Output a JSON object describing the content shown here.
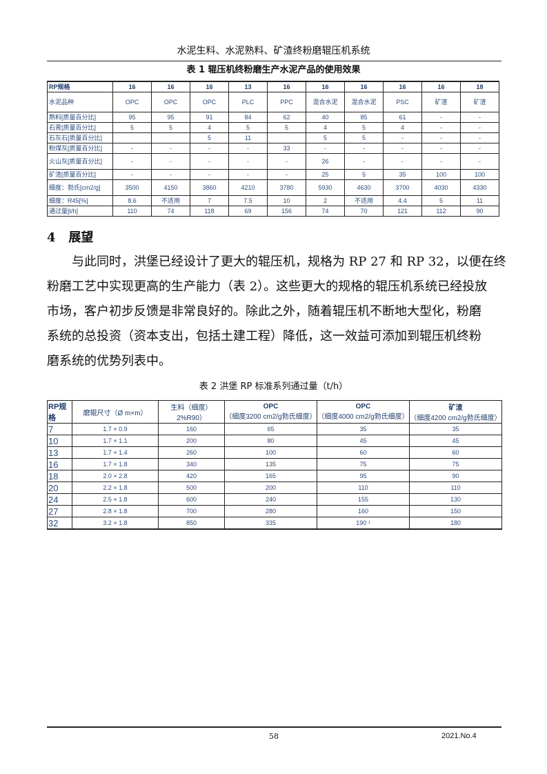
{
  "running_head": "水泥生料、水泥熟料、矿渣终粉磨辊压机系统",
  "table1": {
    "caption": "表 1  辊压机终粉磨生产水泥产品的使用效果",
    "header": [
      "RP规格",
      "16",
      "16",
      "16",
      "13",
      "16",
      "16",
      "16",
      "16",
      "16",
      "18"
    ],
    "rows": [
      [
        "水泥品种",
        "OPC",
        "OPC",
        "OPC",
        "PLC",
        "PPC",
        "混合水泥",
        "混合水泥",
        "PSC",
        "矿渣",
        "矿渣"
      ],
      [
        "熟料[质量百分比]",
        "95",
        "95",
        "91",
        "84",
        "62",
        "40",
        "85",
        "61",
        "-",
        "-"
      ],
      [
        "石膏[质量百分比]",
        "5",
        "5",
        "4",
        "5",
        "5",
        "4",
        "5",
        "4",
        "-",
        "-"
      ],
      [
        "石灰石[质量百分比]",
        "",
        "",
        "5",
        "11",
        "",
        "5",
        "5",
        "-",
        "-",
        "-"
      ],
      [
        "粉煤灰[质量百分比]",
        "-",
        "-",
        "-",
        "-",
        "33",
        "-",
        "-",
        "-",
        "-",
        "-"
      ],
      [
        "火山灰[质量百分比]",
        "-",
        "-",
        "-",
        "-",
        "-",
        "26",
        "-",
        "-",
        "-",
        "-"
      ],
      [
        "矿渣[质量百分比]",
        "-",
        "-",
        "-",
        "-",
        "-",
        "25",
        "5",
        "35",
        "100",
        "100"
      ],
      [
        "细度：勃氏[cm2/g]",
        "3500",
        "4150",
        "3860",
        "4210",
        "3780",
        "5930",
        "4630",
        "3700",
        "4030",
        "4330"
      ],
      [
        "细度：R45[%]",
        "8.6",
        "不适用",
        "7",
        "7.5",
        "10",
        "2",
        "不适用",
        "4.4",
        "5",
        "11"
      ],
      [
        "通过量[t/h]",
        "110",
        "74",
        "118",
        "69",
        "156",
        "74",
        "70",
        "121",
        "112",
        "90"
      ]
    ]
  },
  "section": {
    "number": "4",
    "title": "展望"
  },
  "paragraph": [
    "　　与此同时，洪堡已经设计了更大的辊压机，规格为 RP 27 和 RP 32，以便在终",
    "粉磨工艺中实现更高的生产能力（表 2）。这些更大的规格的辊压机系统已经投放",
    "市场，客户初步反馈是非常良好的。除此之外，随着辊压机不断地大型化，粉磨",
    "系统的总投资（资本支出，包括土建工程）降低，这一效益可添加到辊压机终粉",
    "磨系统的优势列表中。"
  ],
  "table2": {
    "caption": "表 2  洪堡 RP 标准系列通过量（t/h）",
    "header": [
      [
        "RP规格"
      ],
      [
        "磨辊尺寸（Ø m×m）"
      ],
      [
        "生料（细度）2%R90）"
      ],
      [
        "OPC",
        "（细度3200 cm2/g勃氏细度）"
      ],
      [
        "OPC",
        "（细度4000 cm2/g勃氏细度）"
      ],
      [
        "矿渣",
        "（细度4200 cm2/g勃氏细度）"
      ]
    ],
    "rows": [
      [
        "7",
        "1.7 × 0.9",
        "160",
        "65",
        "35",
        "35"
      ],
      [
        "10",
        "1.7 × 1.1",
        "200",
        "80",
        "45",
        "45"
      ],
      [
        "13",
        "1.7 × 1.4",
        "260",
        "100",
        "60",
        "60"
      ],
      [
        "16",
        "1.7 × 1.8",
        "340",
        "135",
        "75",
        "75"
      ],
      [
        "18",
        "2.0 × 2.8",
        "420",
        "165",
        "95",
        "90"
      ],
      [
        "20",
        "2.2 × 1.8",
        "500",
        "200",
        "110",
        "110"
      ],
      [
        "24",
        "2.5 × 1.8",
        "600",
        "240",
        "155",
        "130"
      ],
      [
        "27",
        "2.8 × 1.8",
        "700",
        "280",
        "160",
        "150"
      ],
      [
        "32",
        "3.2 × 1.8",
        "850",
        "335",
        "190 ¹",
        "180"
      ]
    ]
  },
  "footer": {
    "page_number": "58",
    "issue": "2021.No.4"
  }
}
